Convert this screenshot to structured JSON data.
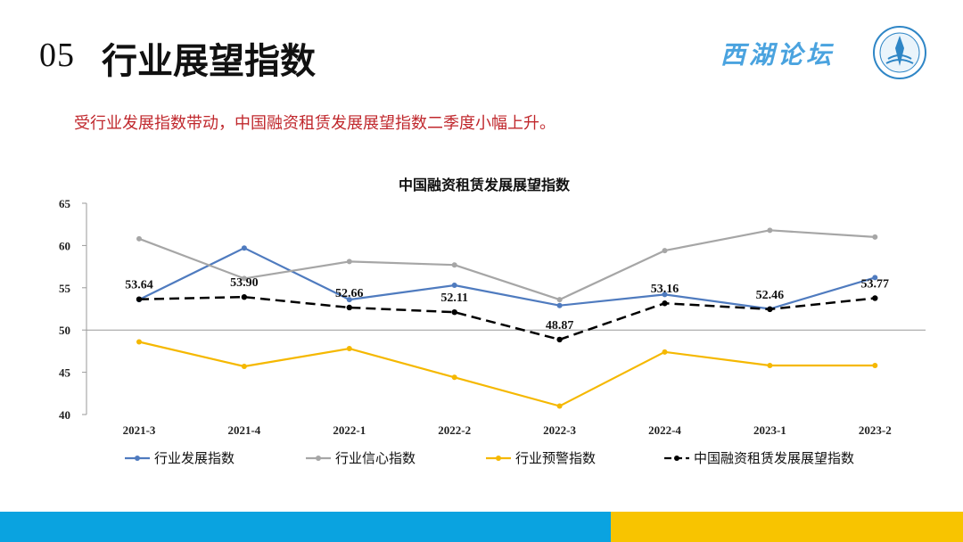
{
  "header": {
    "number": "05",
    "title": "行业展望指数",
    "brand": "西湖论坛"
  },
  "subtitle": "受行业发展指数带动，中国融资租赁发展展望指数二季度小幅上升。",
  "colors": {
    "industry_dev": "#4f7bbf",
    "industry_conf": "#a6a6a6",
    "industry_warn": "#f5b800",
    "china_outlook": "#000000",
    "subtitle": "#c0282d",
    "footer_blue": "#0aa3e0",
    "footer_yellow": "#f8c400"
  },
  "chart_data": {
    "type": "line",
    "title": "中国融资租赁发展展望指数",
    "categories": [
      "2021-3",
      "2021-4",
      "2022-1",
      "2022-2",
      "2022-3",
      "2022-4",
      "2023-1",
      "2023-2"
    ],
    "ylim": [
      40,
      65
    ],
    "yticks": [
      40,
      45,
      50,
      55,
      60,
      65
    ],
    "x_axis_crosses_at": 50,
    "grid": false,
    "legend_position": "bottom",
    "series": [
      {
        "name": "行业发展指数",
        "color": "#4f7bbf",
        "dash": false,
        "values": [
          53.6,
          59.7,
          53.6,
          55.3,
          52.9,
          54.2,
          52.5,
          56.2
        ]
      },
      {
        "name": "行业信心指数",
        "color": "#a6a6a6",
        "dash": false,
        "values": [
          60.8,
          56.1,
          58.1,
          57.7,
          53.6,
          59.4,
          61.8,
          61.0
        ]
      },
      {
        "name": "行业预警指数",
        "color": "#f5b800",
        "dash": false,
        "values": [
          48.6,
          45.7,
          47.8,
          44.4,
          41.0,
          47.4,
          45.8,
          45.8
        ]
      },
      {
        "name": "中国融资租赁发展展望指数",
        "color": "#000000",
        "dash": true,
        "values": [
          53.64,
          53.9,
          52.66,
          52.11,
          48.87,
          53.16,
          52.46,
          53.77
        ],
        "labels": [
          "53.64",
          "53.90",
          "52.66",
          "52.11",
          "48.87",
          "53.16",
          "52.46",
          "53.77"
        ]
      }
    ]
  }
}
